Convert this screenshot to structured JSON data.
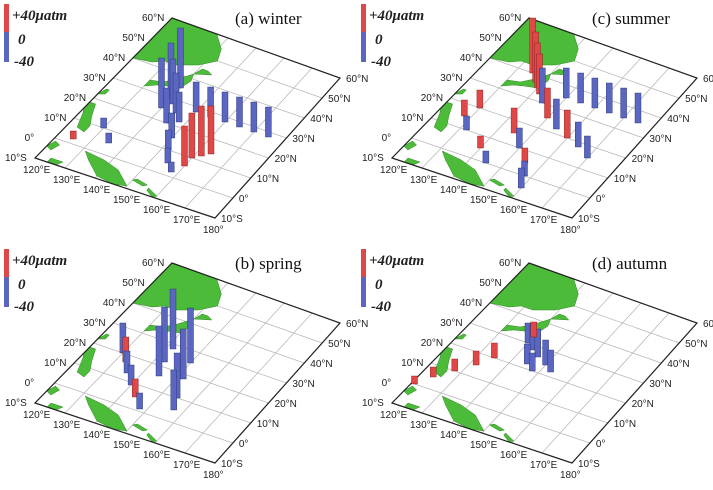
{
  "scale": {
    "top_label": "+40μatm",
    "mid_label": "0",
    "bottom_label": "-40",
    "positive_color": "#e04848",
    "negative_color": "#5a66bf"
  },
  "axes": {
    "lon_labels": [
      "120°E",
      "130°E",
      "140°E",
      "150°E",
      "160°E",
      "170°E",
      "180°"
    ],
    "lat_labels": [
      "10°S",
      "0°",
      "10°N",
      "20°N",
      "30°N",
      "40°N",
      "50°N",
      "60°N"
    ]
  },
  "land_color": "#4dbb3a",
  "panels": [
    {
      "id": "winter",
      "title": "(a) winter"
    },
    {
      "id": "spring",
      "title": "(b) spring"
    },
    {
      "id": "summer",
      "title": "(c) summer"
    },
    {
      "id": "autumn",
      "title": "(d) autumn"
    }
  ]
}
